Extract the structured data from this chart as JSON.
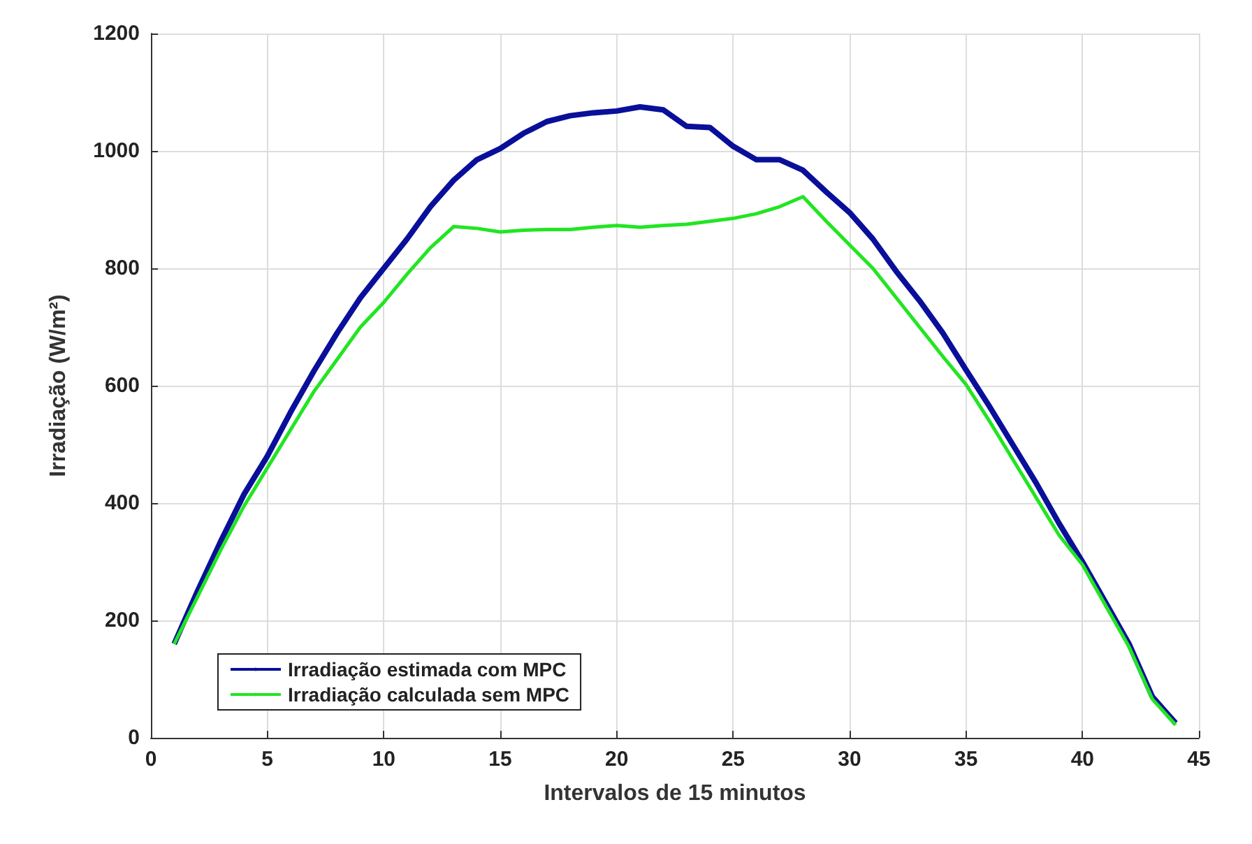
{
  "chart_data": {
    "type": "line",
    "xlabel": "Intervalos de 15 minutos",
    "ylabel": "Irradiação (W/m²)",
    "x": [
      1,
      2,
      3,
      4,
      5,
      6,
      7,
      8,
      9,
      10,
      11,
      12,
      13,
      14,
      15,
      16,
      17,
      18,
      19,
      20,
      21,
      22,
      23,
      24,
      25,
      26,
      27,
      28,
      29,
      30,
      31,
      32,
      33,
      34,
      35,
      36,
      37,
      38,
      39,
      40,
      41,
      42,
      43,
      44
    ],
    "series": [
      {
        "name": "Irradiação estimada com MPC",
        "color": "#0a0f9a",
        "values": [
          160,
          250,
          335,
          415,
          480,
          555,
          625,
          690,
          750,
          800,
          850,
          905,
          950,
          985,
          1004,
          1030,
          1050,
          1060,
          1065,
          1068,
          1075,
          1070,
          1042,
          1040,
          1008,
          985,
          985,
          967,
          930,
          895,
          850,
          795,
          745,
          690,
          627,
          565,
          500,
          435,
          365,
          300,
          230,
          160,
          70,
          25
        ]
      },
      {
        "name": "Irradiação calculada sem MPC",
        "color": "#22e522",
        "values": [
          160,
          240,
          320,
          395,
          460,
          525,
          590,
          645,
          700,
          742,
          790,
          835,
          871,
          868,
          862,
          865,
          866,
          866,
          870,
          873,
          870,
          873,
          875,
          880,
          885,
          893,
          905,
          922,
          880,
          840,
          800,
          750,
          700,
          650,
          602,
          540,
          475,
          410,
          345,
          295,
          225,
          155,
          66,
          22
        ]
      }
    ],
    "xlim": [
      0,
      45
    ],
    "xticks": [
      0,
      5,
      10,
      15,
      20,
      25,
      30,
      35,
      40,
      45
    ],
    "ylim": [
      0,
      1200
    ],
    "yticks": [
      0,
      200,
      400,
      600,
      800,
      1000,
      1200
    ],
    "grid": true,
    "legend": "bottom left",
    "marker": "none",
    "line_style": "solid"
  }
}
